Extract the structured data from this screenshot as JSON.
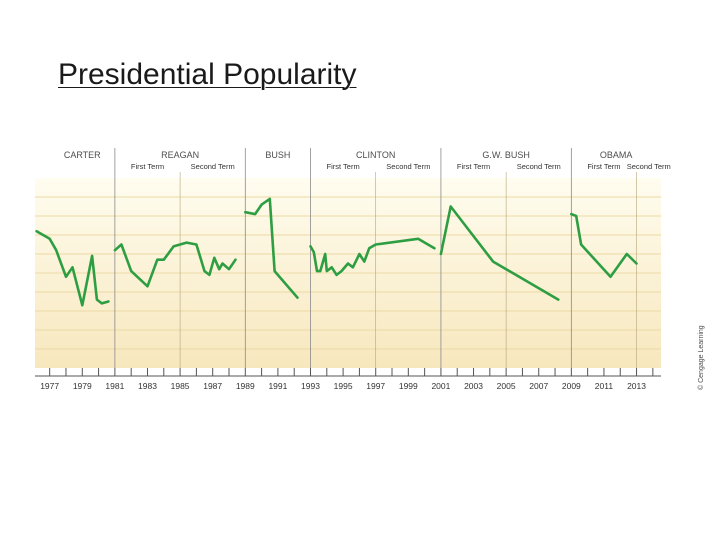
{
  "title": "Presidential Popularity",
  "credit": "© Cengage Learning",
  "colors": {
    "line": "#2e9e43",
    "bg_top": "#fffdf0",
    "bg_bottom": "#f7e7bd",
    "grid": "#ecd9a5",
    "divider": "#8a8a8a"
  },
  "chart_data": {
    "type": "line",
    "xlim": [
      1976.1,
      2014.5
    ],
    "ylim": [
      0,
      100
    ],
    "grid": true,
    "tick_labels": [
      "1977",
      "1979",
      "1981",
      "1983",
      "1985",
      "1987",
      "1989",
      "1991",
      "1993",
      "1995",
      "1997",
      "1999",
      "2001",
      "2003",
      "2005",
      "2007",
      "2009",
      "2011",
      "2013"
    ],
    "presidents": [
      {
        "name": "CARTER",
        "start": 1977,
        "end": 1981,
        "terms": []
      },
      {
        "name": "REAGAN",
        "start": 1981,
        "end": 1989,
        "terms": [
          {
            "label": "First Term",
            "start": 1981,
            "end": 1985
          },
          {
            "label": "Second Term",
            "start": 1985,
            "end": 1989
          }
        ]
      },
      {
        "name": "BUSH",
        "start": 1989,
        "end": 1993,
        "terms": []
      },
      {
        "name": "CLINTON",
        "start": 1993,
        "end": 2001,
        "terms": [
          {
            "label": "First Term",
            "start": 1993,
            "end": 1997
          },
          {
            "label": "Second Term",
            "start": 1997,
            "end": 2001
          }
        ]
      },
      {
        "name": "G.W. BUSH",
        "start": 2001,
        "end": 2009,
        "terms": [
          {
            "label": "First Term",
            "start": 2001,
            "end": 2005
          },
          {
            "label": "Second Term",
            "start": 2005,
            "end": 2009
          }
        ]
      },
      {
        "name": "OBAMA",
        "start": 2009,
        "end": 2014.5,
        "terms": [
          {
            "label": "First Term",
            "start": 2009,
            "end": 2013
          },
          {
            "label": "Second Term",
            "start": 2013,
            "end": 2014.5
          }
        ]
      }
    ],
    "series": [
      {
        "president": "CARTER",
        "x": [
          1976.2,
          1977.0,
          1977.4,
          1978.0,
          1978.4,
          1979.0,
          1979.6,
          1979.9,
          1980.2,
          1980.6
        ],
        "y": [
          72,
          68,
          62,
          48,
          53,
          33,
          59,
          36,
          34,
          35
        ]
      },
      {
        "president": "REAGAN",
        "x": [
          1981.0,
          1981.4,
          1982.0,
          1983.0,
          1983.6,
          1984.0,
          1984.6,
          1985.4,
          1986.0,
          1986.5,
          1986.8,
          1987.1,
          1987.4,
          1987.6,
          1988.0,
          1988.4
        ],
        "y": [
          62,
          65,
          51,
          43,
          57,
          57,
          64,
          66,
          65,
          51,
          49,
          58,
          52,
          55,
          52,
          57
        ]
      },
      {
        "president": "BUSH",
        "x": [
          1989.0,
          1989.6,
          1990.0,
          1990.5,
          1990.8,
          1992.2
        ],
        "y": [
          82,
          81,
          86,
          89,
          51,
          37
        ]
      },
      {
        "president": "CLINTON",
        "x": [
          1993.0,
          1993.2,
          1993.4,
          1993.6,
          1993.9,
          1994.0,
          1994.3,
          1994.6,
          1994.9,
          1995.3,
          1995.6,
          1996.0,
          1996.3,
          1996.6,
          1997.0,
          1999.6,
          2000.6
        ],
        "y": [
          64,
          61,
          51,
          51,
          60,
          51,
          53,
          49,
          51,
          55,
          53,
          60,
          56,
          63,
          65,
          68,
          63
        ]
      },
      {
        "president": "G.W. BUSH",
        "x": [
          2001.0,
          2001.6,
          2004.2,
          2008.2
        ],
        "y": [
          60,
          85,
          56,
          36
        ]
      },
      {
        "president": "OBAMA",
        "x": [
          2009.0,
          2009.3,
          2009.6,
          2011.4,
          2012.4,
          2013.0
        ],
        "y": [
          81,
          80,
          65,
          48,
          60,
          55
        ]
      }
    ]
  }
}
